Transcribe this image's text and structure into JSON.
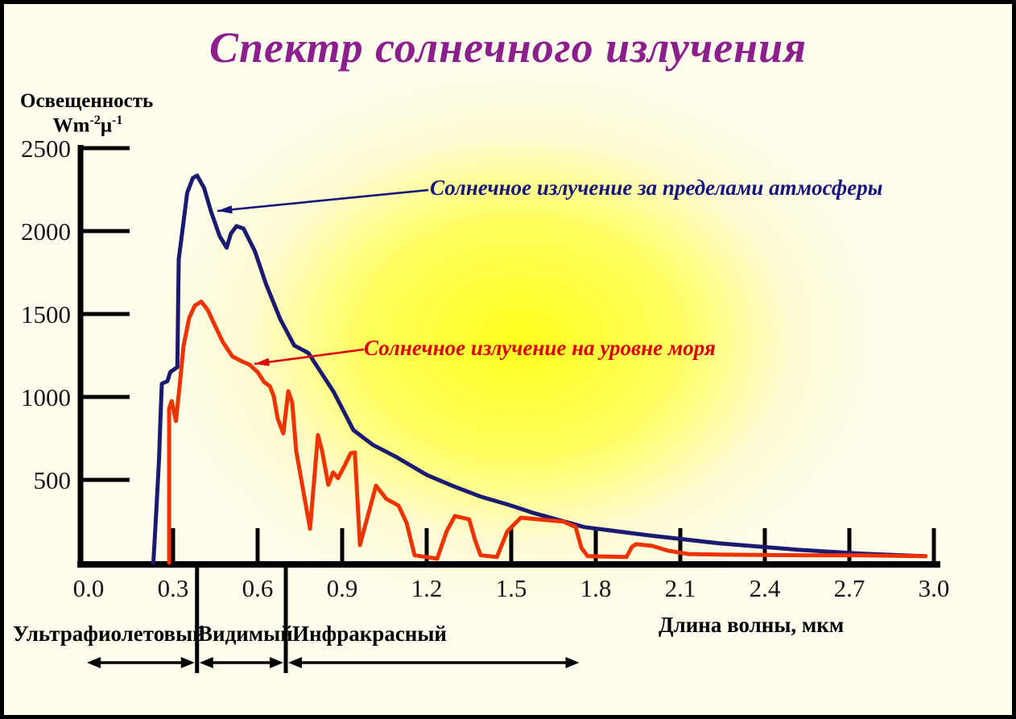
{
  "title": {
    "text": "Спектр солнечного излучения",
    "color": "#8b1f8b"
  },
  "y_axis": {
    "label": "Освещенность",
    "unit": {
      "b1": "Wm",
      "s1": "-2",
      "b2": "μ",
      "s2": "-1"
    },
    "ticks": [
      2500,
      2000,
      1500,
      1000,
      500
    ]
  },
  "x_axis": {
    "title": "Длина волны, мкм",
    "ticks": [
      "0.0",
      "0.3",
      "0.6",
      "0.9",
      "1.2",
      "1.5",
      "1.8",
      "2.1",
      "2.4",
      "2.7",
      "3.0"
    ]
  },
  "annotations": {
    "outside": {
      "text": "Солнечное излучение за пределами атмосферы",
      "color": "#14147c"
    },
    "sea": {
      "text": "Солнечное излучение на уровне моря",
      "color": "#dd0000"
    }
  },
  "regions": [
    {
      "label": "Ультрафиолетовый"
    },
    {
      "label": "Видимый"
    },
    {
      "label": "Инфракрасный"
    }
  ],
  "chart_data": {
    "type": "line",
    "title": "Спектр солнечного излучения",
    "xlabel": "Длина волны, мкм",
    "ylabel": "Освещенность Wm-2 μ-1",
    "xlim": [
      0.0,
      3.0
    ],
    "ylim": [
      0,
      2500
    ],
    "x_tick_step": 0.3,
    "y_tick_step": 500,
    "grid": false,
    "legend_position": "inline-annotations",
    "series": [
      {
        "name": "Солнечное излучение за пределами атмосферы",
        "color": "#1a1a70",
        "points": [
          [
            0.23,
            0
          ],
          [
            0.24,
            300
          ],
          [
            0.25,
            620
          ],
          [
            0.255,
            870
          ],
          [
            0.26,
            1080
          ],
          [
            0.28,
            1095
          ],
          [
            0.29,
            1150
          ],
          [
            0.315,
            1180
          ],
          [
            0.32,
            1830
          ],
          [
            0.335,
            2030
          ],
          [
            0.35,
            2230
          ],
          [
            0.37,
            2320
          ],
          [
            0.385,
            2335
          ],
          [
            0.41,
            2260
          ],
          [
            0.435,
            2115
          ],
          [
            0.465,
            1970
          ],
          [
            0.49,
            1900
          ],
          [
            0.505,
            1985
          ],
          [
            0.525,
            2030
          ],
          [
            0.55,
            2015
          ],
          [
            0.59,
            1880
          ],
          [
            0.63,
            1680
          ],
          [
            0.68,
            1470
          ],
          [
            0.73,
            1310
          ],
          [
            0.78,
            1265
          ],
          [
            0.87,
            1030
          ],
          [
            0.94,
            800
          ],
          [
            1.01,
            710
          ],
          [
            1.09,
            640
          ],
          [
            1.2,
            530
          ],
          [
            1.29,
            465
          ],
          [
            1.39,
            400
          ],
          [
            1.49,
            350
          ],
          [
            1.58,
            300
          ],
          [
            1.76,
            215
          ],
          [
            1.99,
            165
          ],
          [
            2.24,
            117
          ],
          [
            2.52,
            78
          ],
          [
            2.75,
            55
          ],
          [
            2.97,
            40
          ]
        ]
      },
      {
        "name": "Солнечное излучение на уровне моря",
        "color": "#ee3200",
        "points": [
          [
            0.286,
            0
          ],
          [
            0.286,
            930
          ],
          [
            0.295,
            975
          ],
          [
            0.31,
            855
          ],
          [
            0.323,
            1065
          ],
          [
            0.337,
            1305
          ],
          [
            0.357,
            1475
          ],
          [
            0.377,
            1550
          ],
          [
            0.4,
            1575
          ],
          [
            0.423,
            1525
          ],
          [
            0.446,
            1440
          ],
          [
            0.477,
            1330
          ],
          [
            0.51,
            1245
          ],
          [
            0.543,
            1215
          ],
          [
            0.571,
            1195
          ],
          [
            0.6,
            1150
          ],
          [
            0.623,
            1090
          ],
          [
            0.643,
            1065
          ],
          [
            0.657,
            1005
          ],
          [
            0.671,
            870
          ],
          [
            0.691,
            780
          ],
          [
            0.709,
            1035
          ],
          [
            0.723,
            965
          ],
          [
            0.737,
            675
          ],
          [
            0.786,
            205
          ],
          [
            0.814,
            770
          ],
          [
            0.829,
            675
          ],
          [
            0.851,
            470
          ],
          [
            0.868,
            545
          ],
          [
            0.885,
            510
          ],
          [
            0.91,
            590
          ],
          [
            0.93,
            660
          ],
          [
            0.945,
            665
          ],
          [
            0.963,
            107
          ],
          [
            1.02,
            465
          ],
          [
            1.057,
            385
          ],
          [
            1.1,
            345
          ],
          [
            1.129,
            240
          ],
          [
            1.157,
            45
          ],
          [
            1.237,
            25
          ],
          [
            1.271,
            190
          ],
          [
            1.3,
            282
          ],
          [
            1.351,
            262
          ],
          [
            1.371,
            140
          ],
          [
            1.391,
            45
          ],
          [
            1.449,
            35
          ],
          [
            1.486,
            190
          ],
          [
            1.534,
            272
          ],
          [
            1.686,
            248
          ],
          [
            1.729,
            215
          ],
          [
            1.749,
            90
          ],
          [
            1.771,
            40
          ],
          [
            1.909,
            35
          ],
          [
            1.929,
            97
          ],
          [
            1.943,
            112
          ],
          [
            2.0,
            102
          ],
          [
            2.057,
            73
          ],
          [
            2.129,
            53
          ],
          [
            2.257,
            49
          ],
          [
            2.543,
            45
          ],
          [
            2.743,
            45
          ],
          [
            2.971,
            40
          ]
        ]
      }
    ],
    "spectral_regions": [
      {
        "label": "Ультрафиолетовый",
        "range_um": [
          0.0,
          0.385
        ]
      },
      {
        "label": "Видимый",
        "range_um": [
          0.385,
          0.7
        ]
      },
      {
        "label": "Инфракрасный",
        "range_um": [
          0.7,
          1.75
        ]
      }
    ]
  }
}
